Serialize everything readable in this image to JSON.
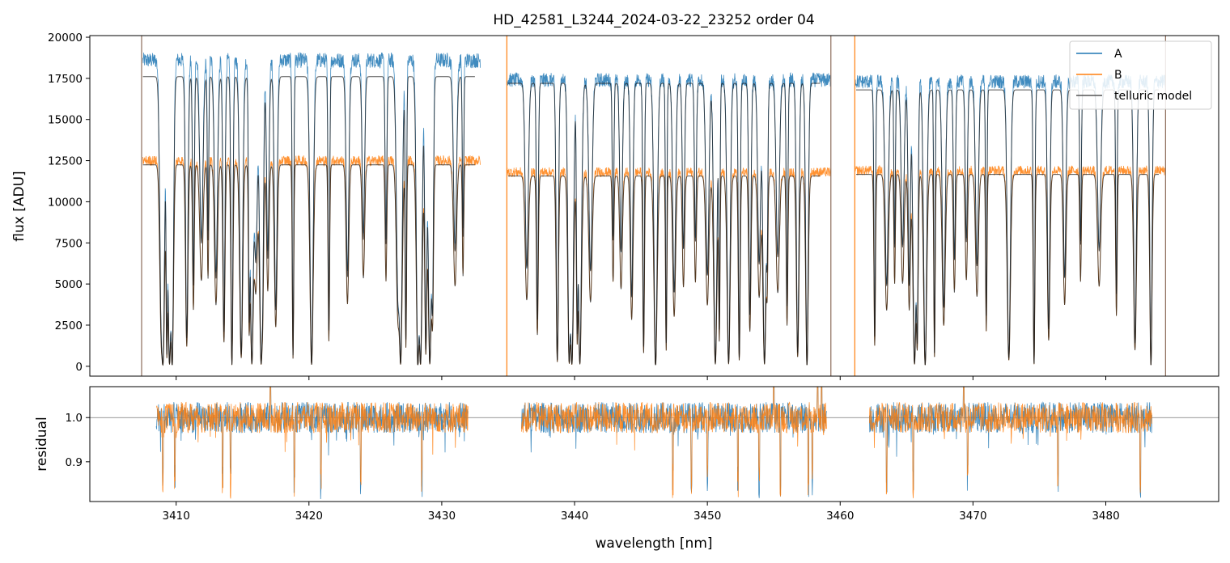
{
  "chart_data": [
    {
      "type": "line",
      "title": "HD_42581_L3244_2024-03-22_23252  order 04",
      "xlabel": "",
      "ylabel": "flux [ADU]",
      "xlim": [
        3403.5,
        3488.5
      ],
      "ylim": [
        -600,
        20100
      ],
      "yticks": [
        0,
        2500,
        5000,
        7500,
        10000,
        12500,
        15000,
        17500,
        20000
      ],
      "xticks": [
        3410,
        3420,
        3430,
        3440,
        3450,
        3460,
        3470,
        3480
      ],
      "legend_position": "top-right",
      "series": [
        {
          "name": "A",
          "color": "#1f77b4",
          "continuum": [
            18600,
            17400,
            17300
          ],
          "segment_ranges": [
            [
              3407.5,
              3432.9
            ],
            [
              3434.9,
              3459.3
            ],
            [
              3461.1,
              3484.5
            ]
          ]
        },
        {
          "name": "B",
          "color": "#ff7f0e",
          "continuum": [
            12500,
            11800,
            11900
          ],
          "segment_ranges": [
            [
              3407.5,
              3432.9
            ],
            [
              3434.9,
              3459.3
            ],
            [
              3461.1,
              3484.5
            ]
          ]
        },
        {
          "name": "telluric model",
          "color": "#1a1a1a",
          "segment_ranges": [
            [
              3407.5,
              3432.5
            ],
            [
              3435.0,
              3458.5
            ],
            [
              3461.2,
              3484.0
            ]
          ]
        }
      ],
      "absorption_lines_nm": [
        3408.9,
        3409.3,
        3409.7,
        3410.8,
        3411.3,
        3411.9,
        3412.4,
        3413.0,
        3413.6,
        3414.2,
        3414.9,
        3415.5,
        3416.0,
        3416.5,
        3416.9,
        3417.5,
        3418.8,
        3420.2,
        3421.5,
        3422.9,
        3424.1,
        3425.8,
        3426.7,
        3427.3,
        3428.2,
        3428.8,
        3429.3,
        3431.0,
        3431.6,
        3436.4,
        3437.2,
        3438.7,
        3439.6,
        3440.2,
        3441.2,
        3442.9,
        3443.5,
        3444.3,
        3445.2,
        3446.1,
        3446.9,
        3447.5,
        3448.2,
        3449.1,
        3450.0,
        3450.9,
        3451.6,
        3452.4,
        3453.2,
        3453.9,
        3454.5,
        3455.3,
        3456.0,
        3456.8,
        3457.5,
        3462.6,
        3463.5,
        3464.1,
        3464.7,
        3465.2,
        3465.8,
        3466.4,
        3467.1,
        3467.8,
        3468.6,
        3469.5,
        3470.3,
        3471.0,
        3472.7,
        3474.6,
        3475.7,
        3476.9,
        3478.1,
        3479.5,
        3480.8,
        3482.2,
        3483.4
      ]
    },
    {
      "type": "line",
      "title": "",
      "xlabel": "wavelength [nm]",
      "ylabel": "residual",
      "xlim": [
        3403.5,
        3488.5
      ],
      "ylim": [
        0.81,
        1.07
      ],
      "yticks": [
        0.9,
        1.0
      ],
      "xticks": [
        3410,
        3420,
        3430,
        3440,
        3450,
        3460,
        3470,
        3480
      ],
      "reference_line": 1.0,
      "series": [
        {
          "name": "A",
          "color": "#1f77b4",
          "segment_ranges": [
            [
              3408.5,
              3432.0
            ],
            [
              3436.0,
              3459.0
            ],
            [
              3462.2,
              3483.5
            ]
          ]
        },
        {
          "name": "B",
          "color": "#ff7f0e",
          "segment_ranges": [
            [
              3408.5,
              3432.0
            ],
            [
              3436.0,
              3459.0
            ],
            [
              3462.2,
              3483.5
            ]
          ]
        }
      ],
      "spikes_down_nm": [
        3409.0,
        3409.9,
        3413.5,
        3414.1,
        3418.9,
        3420.9,
        3423.9,
        3428.5,
        3447.4,
        3448.8,
        3450.0,
        3452.3,
        3453.9,
        3455.5,
        3457.6,
        3457.9,
        3463.5,
        3465.5,
        3469.6,
        3476.4,
        3482.6
      ],
      "spikes_up_nm": [
        3417.1,
        3455.0,
        3458.3,
        3458.6,
        3469.3
      ]
    }
  ]
}
